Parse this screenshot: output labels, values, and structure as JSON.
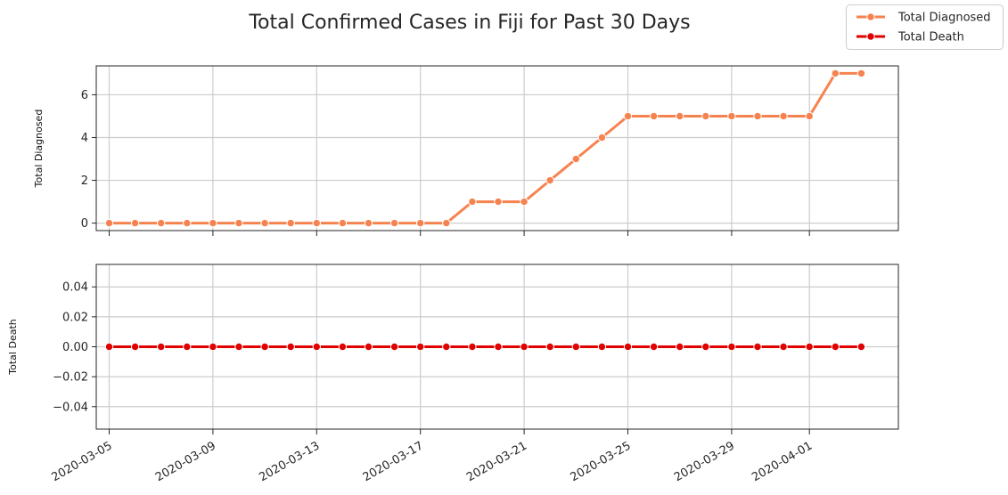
{
  "chart_data": {
    "title": "Total Confirmed Cases in Fiji for Past 30 Days",
    "type": "line",
    "x": [
      "2020-03-05",
      "2020-03-06",
      "2020-03-07",
      "2020-03-08",
      "2020-03-09",
      "2020-03-10",
      "2020-03-11",
      "2020-03-12",
      "2020-03-13",
      "2020-03-14",
      "2020-03-15",
      "2020-03-16",
      "2020-03-17",
      "2020-03-18",
      "2020-03-19",
      "2020-03-20",
      "2020-03-21",
      "2020-03-22",
      "2020-03-23",
      "2020-03-24",
      "2020-03-25",
      "2020-03-26",
      "2020-03-27",
      "2020-03-28",
      "2020-03-29",
      "2020-03-30",
      "2020-03-31",
      "2020-04-01",
      "2020-04-02",
      "2020-04-03"
    ],
    "xticks": [
      "2020-03-05",
      "2020-03-09",
      "2020-03-13",
      "2020-03-17",
      "2020-03-21",
      "2020-03-25",
      "2020-03-29",
      "2020-04-01"
    ],
    "legend": {
      "placement": "top-right",
      "entries": [
        "Total Diagnosed",
        "Total Death"
      ]
    },
    "grid": true,
    "subplots": [
      {
        "ylabel": "Total Diagnosed",
        "ylim": [
          -0.35,
          7.35
        ],
        "yticks": [
          "0",
          "2",
          "4",
          "6"
        ],
        "series": [
          {
            "name": "Total Diagnosed",
            "color": "#f6834f",
            "values": [
              0,
              0,
              0,
              0,
              0,
              0,
              0,
              0,
              0,
              0,
              0,
              0,
              0,
              0,
              1,
              1,
              1,
              2,
              3,
              4,
              5,
              5,
              5,
              5,
              5,
              5,
              5,
              5,
              7,
              7
            ]
          }
        ]
      },
      {
        "ylabel": "Total Death",
        "ylim": [
          -0.055,
          0.055
        ],
        "yticks": [
          "−0.04",
          "−0.02",
          "0.00",
          "0.02",
          "0.04"
        ],
        "series": [
          {
            "name": "Total Death",
            "color": "#e00000",
            "values": [
              0,
              0,
              0,
              0,
              0,
              0,
              0,
              0,
              0,
              0,
              0,
              0,
              0,
              0,
              0,
              0,
              0,
              0,
              0,
              0,
              0,
              0,
              0,
              0,
              0,
              0,
              0,
              0,
              0,
              0
            ]
          }
        ]
      }
    ]
  }
}
